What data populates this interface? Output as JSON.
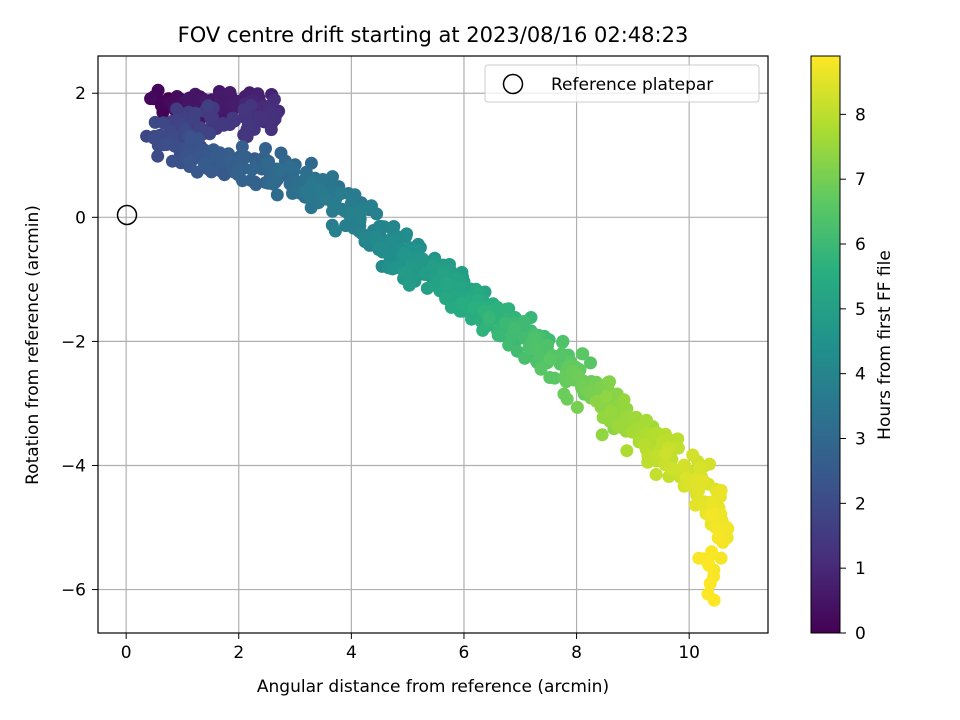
{
  "chart_data": {
    "type": "scatter",
    "title": "FOV centre drift starting at 2023/08/16 02:48:23",
    "xlabel": "Angular distance from reference (arcmin)",
    "ylabel": "Rotation from reference (arcmin)",
    "xlim": [
      -0.5,
      11.4
    ],
    "ylim": [
      -6.7,
      2.6
    ],
    "xticks": [
      0,
      2,
      4,
      6,
      8,
      10
    ],
    "yticks": [
      -6,
      -4,
      -2,
      0,
      2
    ],
    "grid": true,
    "legend_position": "top-right",
    "reference_point": {
      "label": "Reference platepar",
      "x": 0,
      "y": 0
    },
    "colorbar": {
      "label": "Hours from first FF file",
      "colormap": "viridis",
      "range": [
        0,
        8.9
      ],
      "ticks": [
        0,
        1,
        2,
        3,
        4,
        5,
        6,
        7,
        8
      ]
    },
    "trend": [
      {
        "t": 0.0,
        "x": 0.6,
        "y": 1.85,
        "sx": 0.3,
        "sy": 0.18
      },
      {
        "t": 0.4,
        "x": 1.2,
        "y": 1.8,
        "sx": 0.4,
        "sy": 0.2
      },
      {
        "t": 0.8,
        "x": 2.3,
        "y": 1.85,
        "sx": 0.3,
        "sy": 0.18
      },
      {
        "t": 1.2,
        "x": 2.6,
        "y": 1.6,
        "sx": 0.25,
        "sy": 0.2
      },
      {
        "t": 1.6,
        "x": 1.2,
        "y": 1.5,
        "sx": 0.5,
        "sy": 0.25
      },
      {
        "t": 2.0,
        "x": 0.8,
        "y": 1.2,
        "sx": 0.4,
        "sy": 0.25
      },
      {
        "t": 2.4,
        "x": 1.5,
        "y": 0.9,
        "sx": 0.5,
        "sy": 0.25
      },
      {
        "t": 2.8,
        "x": 2.3,
        "y": 0.8,
        "sx": 0.5,
        "sy": 0.3
      },
      {
        "t": 3.2,
        "x": 3.1,
        "y": 0.5,
        "sx": 0.4,
        "sy": 0.3
      },
      {
        "t": 3.6,
        "x": 3.7,
        "y": 0.3,
        "sx": 0.4,
        "sy": 0.3
      },
      {
        "t": 4.0,
        "x": 4.5,
        "y": -0.3,
        "sx": 0.4,
        "sy": 0.25
      },
      {
        "t": 4.5,
        "x": 5.0,
        "y": -0.7,
        "sx": 0.4,
        "sy": 0.25
      },
      {
        "t": 5.0,
        "x": 5.7,
        "y": -1.0,
        "sx": 0.4,
        "sy": 0.25
      },
      {
        "t": 5.5,
        "x": 6.3,
        "y": -1.5,
        "sx": 0.4,
        "sy": 0.25
      },
      {
        "t": 6.0,
        "x": 7.0,
        "y": -1.9,
        "sx": 0.4,
        "sy": 0.25
      },
      {
        "t": 6.5,
        "x": 7.7,
        "y": -2.3,
        "sx": 0.4,
        "sy": 0.25
      },
      {
        "t": 7.0,
        "x": 8.3,
        "y": -2.8,
        "sx": 0.35,
        "sy": 0.25
      },
      {
        "t": 7.5,
        "x": 8.9,
        "y": -3.3,
        "sx": 0.35,
        "sy": 0.25
      },
      {
        "t": 8.0,
        "x": 9.6,
        "y": -3.8,
        "sx": 0.35,
        "sy": 0.25
      },
      {
        "t": 8.4,
        "x": 10.2,
        "y": -4.2,
        "sx": 0.3,
        "sy": 0.25
      },
      {
        "t": 8.7,
        "x": 10.5,
        "y": -4.8,
        "sx": 0.25,
        "sy": 0.3
      },
      {
        "t": 8.9,
        "x": 10.4,
        "y": -5.9,
        "sx": 0.2,
        "sy": 0.35
      }
    ],
    "point_count": 900
  }
}
